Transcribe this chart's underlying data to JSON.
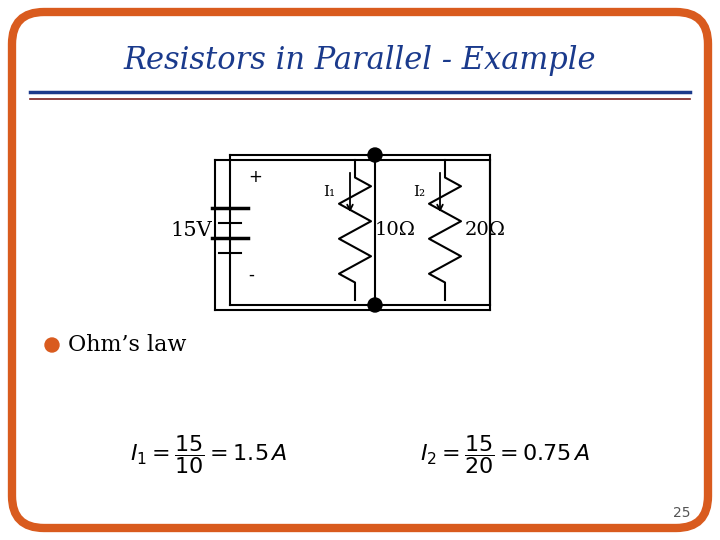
{
  "title": "Resistors in Parallel - Example",
  "title_color": "#1A3A8C",
  "title_fontsize": 22,
  "bg_color": "#FFFFFF",
  "border_color": "#D95B1E",
  "border_linewidth": 6,
  "separator_color1": "#1A3A8C",
  "separator_color2": "#7B2020",
  "voltage": "15V",
  "R1_label": "10Ω",
  "R2_label": "20Ω",
  "I1_label": "I₁",
  "I2_label": "I₂",
  "plus_label": "+",
  "minus_label": "-",
  "bullet_color": "#D95B1E",
  "ohms_law_text": "Ohm’s law",
  "page_number": "25"
}
